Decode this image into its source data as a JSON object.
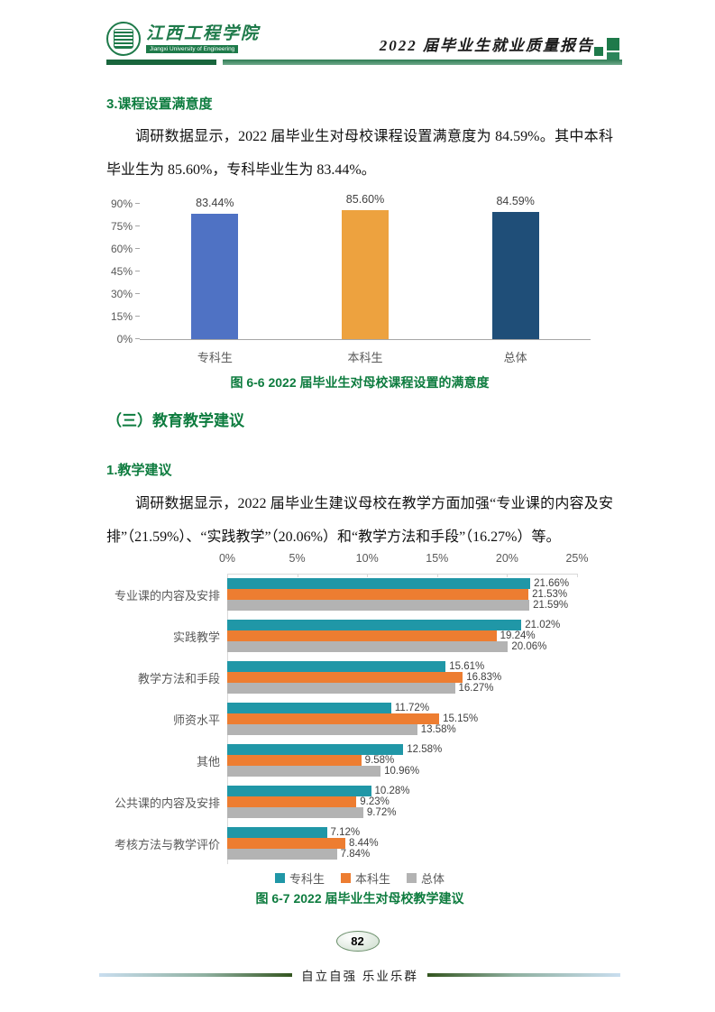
{
  "header": {
    "logo_cn": "江西工程学院",
    "logo_en": "Jiangxi University of Engineering",
    "title": "2022 届毕业生就业质量报告"
  },
  "sections": {
    "satisfaction": {
      "heading": "3.课程设置满意度",
      "paragraph": "调研数据显示，2022 届毕业生对母校课程设置满意度为 84.59%。其中本科毕业生为 85.60%，专科毕业生为 83.44%。"
    },
    "suggestions": {
      "section_heading": "（三）教育教学建议",
      "sub_heading": "1.教学建议",
      "paragraph": "调研数据显示，2022 届毕业生建议母校在教学方面加强“专业课的内容及安排”（21.59%）、“实践教学”（20.06%）和“教学方法和手段”（16.27%）等。"
    }
  },
  "chart_data": [
    {
      "type": "bar",
      "title": "图 6-6 2022 届毕业生对母校课程设置的满意度",
      "categories": [
        "专科生",
        "本科生",
        "总体"
      ],
      "values": [
        83.44,
        85.6,
        84.59
      ],
      "labels": [
        "83.44%",
        "85.60%",
        "84.59%"
      ],
      "colors": [
        "#4F72C4",
        "#EDA23F",
        "#1F4E78"
      ],
      "ylim": [
        0,
        90
      ],
      "yticks": [
        "0%",
        "15%",
        "30%",
        "45%",
        "60%",
        "75%",
        "90%"
      ],
      "grid": false,
      "legend": "none"
    },
    {
      "type": "bar-horizontal",
      "title": "图 6-7 2022 届毕业生对母校教学建议",
      "categories": [
        "专业课的内容及安排",
        "实践教学",
        "教学方法和手段",
        "师资水平",
        "其他",
        "公共课的内容及安排",
        "考核方法与教学评价"
      ],
      "series": [
        {
          "name": "专科生",
          "color": "#2097A7",
          "values": [
            21.66,
            21.02,
            15.61,
            11.72,
            12.58,
            10.28,
            7.12
          ]
        },
        {
          "name": "本科生",
          "color": "#ED7D31",
          "values": [
            21.53,
            19.24,
            16.83,
            15.15,
            9.58,
            9.23,
            8.44
          ]
        },
        {
          "name": "总体",
          "color": "#B3B3B3",
          "values": [
            21.59,
            20.06,
            16.27,
            13.58,
            10.96,
            9.72,
            7.84
          ]
        }
      ],
      "xlim": [
        0,
        25
      ],
      "xticks": [
        "0%",
        "5%",
        "10%",
        "15%",
        "20%",
        "25%"
      ],
      "grid": false,
      "legend_position": "bottom"
    }
  ],
  "footer": {
    "page_number": "82",
    "motto": "自立自强 乐业乐群"
  }
}
